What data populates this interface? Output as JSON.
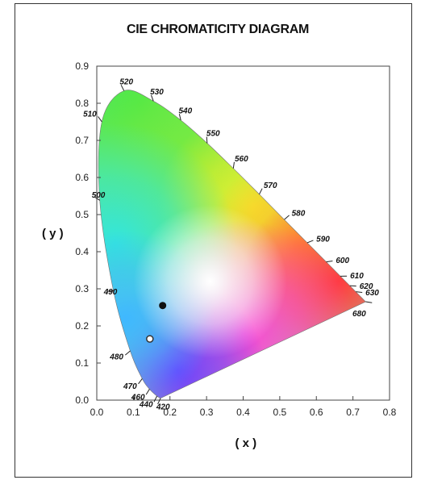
{
  "chart_data": {
    "type": "scatter",
    "title": "CIE CHROMATICITY DIAGRAM",
    "xlabel": "( x )",
    "ylabel": "( y )",
    "xlim": [
      0.0,
      0.8
    ],
    "ylim": [
      0.0,
      0.9
    ],
    "xticks": [
      "0.0",
      "0.1",
      "0.2",
      "0.3",
      "0.4",
      "0.5",
      "0.6",
      "0.7",
      "0.8"
    ],
    "yticks": [
      "0.0",
      "0.1",
      "0.2",
      "0.3",
      "0.4",
      "0.5",
      "0.6",
      "0.7",
      "0.8",
      "0.9"
    ],
    "spectral_locus": [
      {
        "nm": "420",
        "x": 0.1741,
        "y": 0.005,
        "label_side": "right"
      },
      {
        "nm": "440",
        "x": 0.1644,
        "y": 0.0109,
        "label_side": "left"
      },
      {
        "nm": "460",
        "x": 0.144,
        "y": 0.0297,
        "label_side": "left"
      },
      {
        "nm": "470",
        "x": 0.1241,
        "y": 0.0578,
        "label_side": "left"
      },
      {
        "nm": "480",
        "x": 0.0913,
        "y": 0.1327,
        "label_side": "left"
      },
      {
        "nm": "490",
        "x": 0.0454,
        "y": 0.295,
        "label_side": "right"
      },
      {
        "nm": "500",
        "x": 0.0082,
        "y": 0.5384,
        "label_side": "right"
      },
      {
        "nm": "510",
        "x": 0.0139,
        "y": 0.7502,
        "label_side": "left"
      },
      {
        "nm": "520",
        "x": 0.0743,
        "y": 0.8338,
        "label_side": "right"
      },
      {
        "nm": "530",
        "x": 0.1547,
        "y": 0.8059,
        "label_side": "right"
      },
      {
        "nm": "540",
        "x": 0.2296,
        "y": 0.7543,
        "label_side": "right"
      },
      {
        "nm": "550",
        "x": 0.3016,
        "y": 0.6923,
        "label_side": "right"
      },
      {
        "nm": "560",
        "x": 0.3731,
        "y": 0.6245,
        "label_side": "right"
      },
      {
        "nm": "570",
        "x": 0.4441,
        "y": 0.5547,
        "label_side": "right"
      },
      {
        "nm": "580",
        "x": 0.5125,
        "y": 0.4866,
        "label_side": "right"
      },
      {
        "nm": "590",
        "x": 0.5752,
        "y": 0.4242,
        "label_side": "right"
      },
      {
        "nm": "600",
        "x": 0.627,
        "y": 0.3725,
        "label_side": "right"
      },
      {
        "nm": "610",
        "x": 0.6658,
        "y": 0.334,
        "label_side": "right"
      },
      {
        "nm": "620",
        "x": 0.6915,
        "y": 0.3083,
        "label_side": "right"
      },
      {
        "nm": "630",
        "x": 0.7079,
        "y": 0.292,
        "label_side": "right"
      },
      {
        "nm": "680",
        "x": 0.7347,
        "y": 0.2653,
        "label_side": "below"
      }
    ],
    "points": [
      {
        "x": 0.18,
        "y": 0.255,
        "style": "filled",
        "color": "#111111"
      },
      {
        "x": 0.145,
        "y": 0.165,
        "style": "hollow",
        "color": "#333333"
      }
    ],
    "grid": false,
    "legend": "none"
  }
}
